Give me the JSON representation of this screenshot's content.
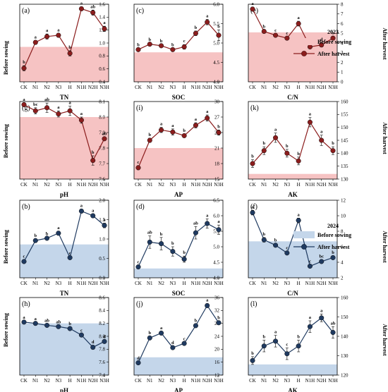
{
  "figure": {
    "year_2023": "2023",
    "year_2024": "2024",
    "before_label": "Before sowing",
    "after_label": "After harvest",
    "y_left_label": "Before sowing",
    "y_right_label": "After harvest",
    "colors": {
      "red_fill": "#f6c3c3",
      "red_line": "#8b1d1d",
      "blue_fill": "#c4d6ea",
      "blue_line": "#1f3a60"
    }
  },
  "chart_data": [
    {
      "id": "a",
      "panel_label": "(a)",
      "year": "2023",
      "type": "line",
      "xlabel": "TN",
      "categories": [
        "CK",
        "N1",
        "N2",
        "N3",
        "H",
        "N1H",
        "N2H",
        "N3H"
      ],
      "ylim": [
        0.4,
        1.6
      ],
      "yticks": [
        "0.4",
        "0.6",
        "0.8",
        "1.0",
        "1.2",
        "1.4",
        "1.6"
      ],
      "before_sowing": 0.94,
      "values": [
        0.61,
        1.01,
        1.1,
        1.12,
        0.84,
        1.53,
        1.47,
        1.22
      ],
      "errors": [
        0.04,
        0.03,
        0.04,
        0.03,
        0.04,
        0.03,
        0.04,
        0.04
      ],
      "letters": [
        "b",
        "a",
        "a",
        "a",
        "b",
        "a",
        "ab",
        "a"
      ]
    },
    {
      "id": "c",
      "panel_label": "(c)",
      "year": "2023",
      "type": "line",
      "xlabel": "SOC",
      "categories": [
        "CK",
        "N1",
        "N2",
        "N3",
        "H",
        "N1H",
        "N2H",
        "N3H"
      ],
      "ylim": [
        4.0,
        6.0
      ],
      "yticks": [
        "4.0",
        "4.5",
        "5.0",
        "5.5",
        "6.0"
      ],
      "before_sowing": 4.76,
      "values": [
        4.83,
        4.97,
        4.93,
        4.83,
        4.9,
        5.25,
        5.54,
        5.2
      ],
      "errors": [
        0.03,
        0.03,
        0.03,
        0.03,
        0.06,
        0.06,
        0.07,
        0.14
      ],
      "letters": [
        "b",
        "b",
        "b",
        "b",
        "c",
        "b",
        "a",
        "b"
      ]
    },
    {
      "id": "e",
      "panel_label": "(e)",
      "year": "2023",
      "type": "line",
      "xlabel": "C/N",
      "categories": [
        "CK",
        "N1",
        "N2",
        "N3",
        "H",
        "N1H",
        "N2H",
        "N3H"
      ],
      "ylim": [
        0,
        8
      ],
      "yticks": [
        "0",
        "1",
        "2",
        "3",
        "4",
        "5",
        "6",
        "7",
        "8"
      ],
      "before_sowing": 5.1,
      "values": [
        7.5,
        5.2,
        4.8,
        4.5,
        6.0,
        3.6,
        3.8,
        4.5
      ],
      "errors": [
        0.2,
        0.15,
        0.15,
        0.15,
        0.25,
        0.15,
        0.2,
        0.2
      ],
      "letters": [
        "a",
        "b",
        "c",
        "c",
        "a",
        "d",
        "d",
        "b"
      ]
    },
    {
      "id": "g",
      "panel_label": "(g)",
      "year": "2023",
      "type": "line",
      "xlabel": "pH",
      "categories": [
        "CK",
        "N1",
        "N2",
        "N3",
        "H",
        "N1H",
        "N2H",
        "N3H"
      ],
      "ylim": [
        7.6,
        8.1
      ],
      "yticks": [
        "7.6",
        "7.7",
        "7.8",
        "7.9",
        "8.0",
        "8.1"
      ],
      "before_sowing": 8.0,
      "values": [
        8.08,
        8.04,
        8.06,
        8.02,
        8.04,
        7.98,
        7.72,
        7.86
      ],
      "errors": [
        0.01,
        0.02,
        0.03,
        0.02,
        0.03,
        0.02,
        0.03,
        0.01
      ],
      "letters": [
        "a",
        "bc",
        "ab",
        "a",
        "a",
        "a",
        "b",
        "ab"
      ]
    },
    {
      "id": "i",
      "panel_label": "(i)",
      "year": "2023",
      "type": "line",
      "xlabel": "AP",
      "categories": [
        "CK",
        "N1",
        "N2",
        "N3",
        "H",
        "N1H",
        "N2H",
        "N3H"
      ],
      "ylim": [
        15,
        30
      ],
      "yticks": [
        "15",
        "18",
        "21",
        "24",
        "27",
        "30"
      ],
      "before_sowing": 21.0,
      "values": [
        17.2,
        22.5,
        24.5,
        24.1,
        23.4,
        25.4,
        26.8,
        24.0
      ],
      "errors": [
        0.4,
        0.4,
        0.5,
        0.6,
        0.3,
        0.5,
        0.6,
        0.5
      ],
      "letters": [
        "c",
        "b",
        "a",
        "a",
        "b",
        "a",
        "a",
        "b"
      ]
    },
    {
      "id": "k",
      "panel_label": "(k)",
      "year": "2023",
      "type": "line",
      "xlabel": "AK",
      "categories": [
        "CK",
        "N1",
        "N2",
        "N3",
        "H",
        "N1H",
        "N2H",
        "N3H"
      ],
      "ylim": [
        130,
        160
      ],
      "yticks": [
        "130",
        "135",
        "140",
        "145",
        "150",
        "155",
        "160"
      ],
      "before_sowing": 132,
      "values": [
        136,
        141,
        146,
        140,
        137,
        152,
        145,
        141
      ],
      "errors": [
        1.5,
        1.5,
        1.8,
        1.5,
        1.5,
        1.8,
        2.0,
        1.5
      ],
      "letters": [
        "b",
        "b",
        "a",
        "b",
        "b",
        "a",
        "a",
        "b"
      ]
    },
    {
      "id": "b",
      "panel_label": "(b)",
      "year": "2024",
      "type": "line",
      "xlabel": "TN",
      "categories": [
        "CK",
        "N1",
        "N2",
        "N3",
        "H",
        "N1H",
        "N2H",
        "N3H"
      ],
      "ylim": [
        0.0,
        2.0
      ],
      "yticks": [
        "0.0",
        "0.5",
        "1.0",
        "1.5",
        "2.0"
      ],
      "before_sowing": 0.86,
      "values": [
        0.42,
        0.96,
        1.02,
        1.15,
        0.52,
        1.72,
        1.6,
        1.35
      ],
      "errors": [
        0.04,
        0.04,
        0.03,
        0.05,
        0.03,
        0.05,
        0.05,
        0.06
      ],
      "letters": [
        "c",
        "b",
        "b",
        "a",
        "c",
        "a",
        "a",
        "a"
      ]
    },
    {
      "id": "d",
      "panel_label": "(d)",
      "year": "2024",
      "type": "line",
      "xlabel": "SOC",
      "categories": [
        "CK",
        "N1",
        "N2",
        "N3",
        "H",
        "N1H",
        "N2H",
        "N3H"
      ],
      "ylim": [
        4.0,
        6.5
      ],
      "yticks": [
        "4.0",
        "4.5",
        "5.0",
        "5.5",
        "6.0",
        "6.5"
      ],
      "before_sowing": 4.3,
      "values": [
        4.35,
        5.15,
        5.1,
        4.85,
        4.6,
        5.45,
        5.75,
        5.55
      ],
      "errors": [
        0.05,
        0.2,
        0.2,
        0.15,
        0.1,
        0.2,
        0.15,
        0.15
      ],
      "letters": [
        "c",
        "ab",
        "b",
        "b",
        "b",
        "ab",
        "a",
        "a"
      ]
    },
    {
      "id": "f",
      "panel_label": "(f)",
      "year": "2024",
      "type": "line",
      "xlabel": "C/N",
      "categories": [
        "CK",
        "N1",
        "N2",
        "N3",
        "H",
        "N1H",
        "N2H",
        "N3H"
      ],
      "ylim": [
        2,
        12
      ],
      "yticks": [
        "2",
        "4",
        "6",
        "8",
        "10",
        "12"
      ],
      "before_sowing": 6.7,
      "values": [
        10.4,
        6.9,
        6.2,
        5.2,
        9.4,
        3.5,
        4.1,
        4.6
      ],
      "errors": [
        0.3,
        0.3,
        0.2,
        0.2,
        0.3,
        0.2,
        0.2,
        0.2
      ],
      "letters": [
        "a",
        "b",
        "b",
        "c",
        "a",
        "c",
        "bc",
        "b"
      ]
    },
    {
      "id": "h",
      "panel_label": "(h)",
      "year": "2024",
      "type": "line",
      "xlabel": "pH",
      "categories": [
        "CK",
        "N1",
        "N2",
        "N3",
        "H",
        "N1H",
        "N2H",
        "N3H"
      ],
      "ylim": [
        7.4,
        8.6
      ],
      "yticks": [
        "7.4",
        "7.6",
        "7.8",
        "8.0",
        "8.2",
        "8.4",
        "8.6"
      ],
      "before_sowing": 8.2,
      "values": [
        8.22,
        8.2,
        8.17,
        8.15,
        8.12,
        8.02,
        7.83,
        7.92
      ],
      "errors": [
        0.02,
        0.02,
        0.02,
        0.02,
        0.02,
        0.02,
        0.03,
        0.02
      ],
      "letters": [
        "a",
        "a",
        "ab",
        "ab",
        "b",
        "c",
        "d",
        "d"
      ]
    },
    {
      "id": "j",
      "panel_label": "(j)",
      "year": "2024",
      "type": "line",
      "xlabel": "AP",
      "categories": [
        "CK",
        "N1",
        "N2",
        "N3",
        "H",
        "N1H",
        "N2H",
        "N3H"
      ],
      "ylim": [
        12,
        36
      ],
      "yticks": [
        "12",
        "16",
        "20",
        "24",
        "28",
        "32",
        "36"
      ],
      "before_sowing": 17.5,
      "values": [
        15.8,
        23.5,
        25.0,
        20.5,
        21.8,
        27.3,
        33.5,
        28.2
      ],
      "errors": [
        0.3,
        0.5,
        0.5,
        0.4,
        0.4,
        0.5,
        0.6,
        0.5
      ],
      "letters": [
        "d",
        "b",
        "a",
        "d",
        "c",
        "b",
        "a",
        "b"
      ]
    },
    {
      "id": "l",
      "panel_label": "(l)",
      "year": "2024",
      "type": "line",
      "xlabel": "AK",
      "categories": [
        "CK",
        "N1",
        "N2",
        "N3",
        "H",
        "N1H",
        "N2H",
        "N3H"
      ],
      "ylim": [
        120,
        160
      ],
      "yticks": [
        "120",
        "130",
        "140",
        "150",
        "160"
      ],
      "before_sowing": 125.5,
      "values": [
        127.5,
        135,
        137.5,
        131,
        135,
        145,
        149.5,
        142
      ],
      "errors": [
        2,
        3,
        3,
        3,
        3,
        3,
        2,
        3
      ],
      "letters": [
        "b",
        "b",
        "a",
        "c",
        "b",
        "a",
        "a",
        "ab"
      ]
    }
  ]
}
